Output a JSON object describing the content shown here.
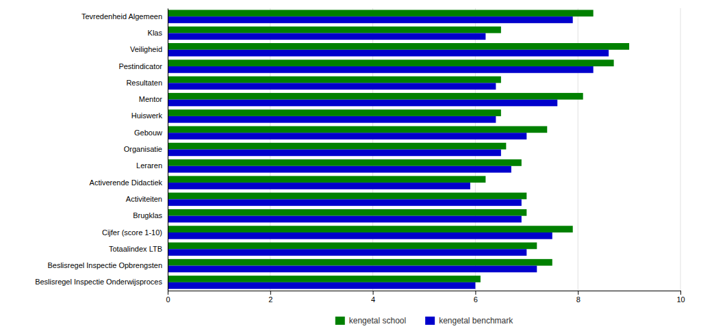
{
  "chart_data": {
    "type": "bar",
    "orientation": "horizontal",
    "categories": [
      "Tevredenheid Algemeen",
      "Klas",
      "Veiligheid",
      "Pestindicator",
      "Resultaten",
      "Mentor",
      "Huiswerk",
      "Gebouw",
      "Organisatie",
      "Leraren",
      "Activerende Didactiek",
      "Activiteiten",
      "Brugklas",
      "Cijfer (score 1-10)",
      "Totaalindex LTB",
      "Beslisregel Inspectie Opbrengsten",
      "Beslisregel Inspectie Onderwijsproces"
    ],
    "series": [
      {
        "name": "kengetal school",
        "color": "#008000",
        "values": [
          8.3,
          6.5,
          9.0,
          8.7,
          6.5,
          8.1,
          6.5,
          7.4,
          6.6,
          6.9,
          6.2,
          7.0,
          7.0,
          7.9,
          7.2,
          7.5,
          6.1
        ]
      },
      {
        "name": "kengetal benchmark",
        "color": "#0000cc",
        "values": [
          7.9,
          6.2,
          8.6,
          8.3,
          6.4,
          7.6,
          6.4,
          7.0,
          6.5,
          6.7,
          5.9,
          6.9,
          6.9,
          7.5,
          7.0,
          7.2,
          6.0
        ]
      }
    ],
    "xlim": [
      0,
      10
    ],
    "xticks": [
      0,
      2,
      4,
      6,
      8,
      10
    ],
    "grid": true,
    "legend": "bottom"
  }
}
